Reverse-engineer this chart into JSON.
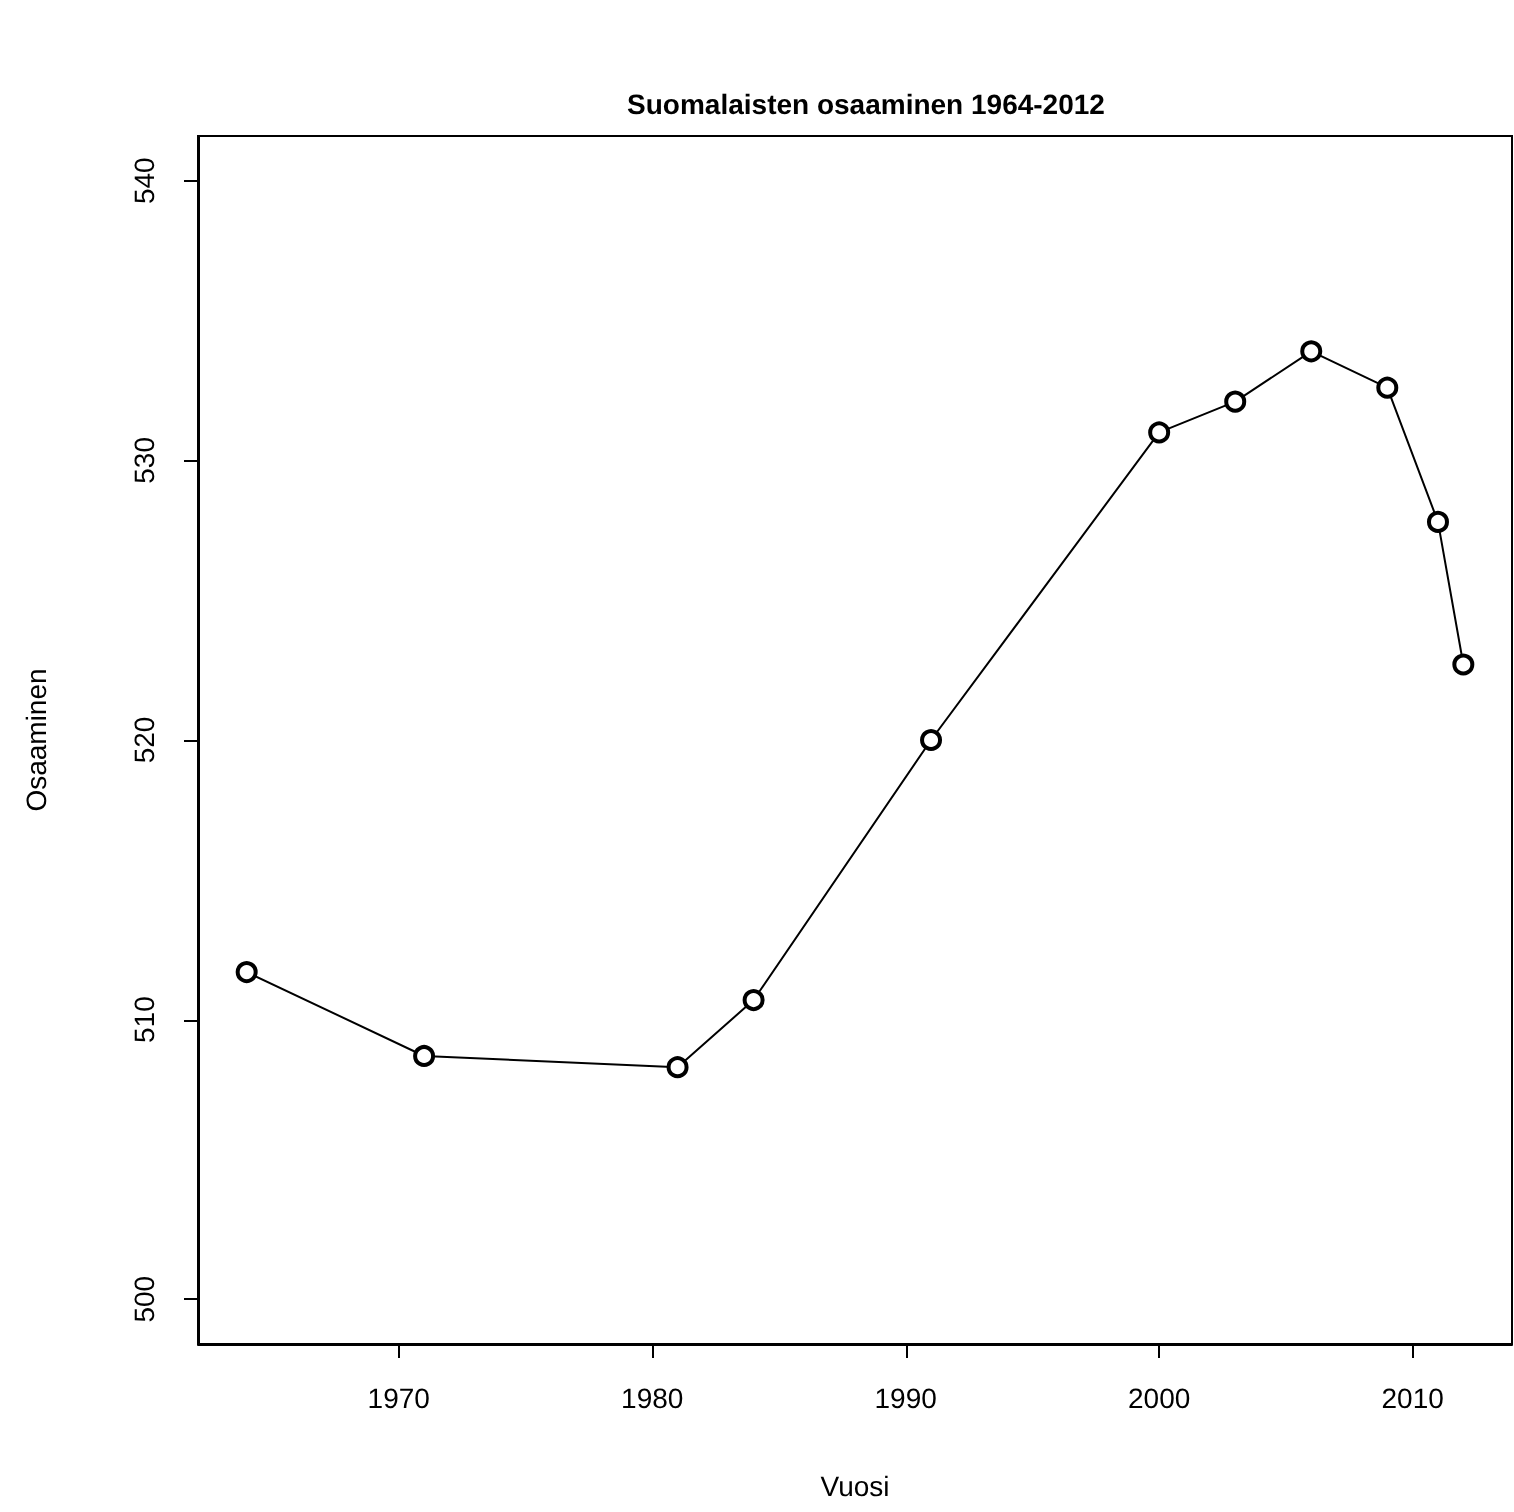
{
  "chart_data": {
    "type": "line",
    "title": "Suomalaisten osaaminen 1964-2012",
    "xlabel": "Vuosi",
    "ylabel": "Osaaminen",
    "x": [
      1964,
      1971,
      1981,
      1984,
      1991,
      2000,
      2003,
      2006,
      2009,
      2011,
      2012
    ],
    "series": [
      {
        "color": "#000000",
        "values": [
          511.7,
          508.7,
          508.3,
          510.7,
          520.0,
          531.0,
          532.1,
          533.9,
          532.6,
          527.8,
          522.7
        ]
      }
    ],
    "xlim": [
      1962.08,
      2013.92
    ],
    "xticks": [
      1970,
      1980,
      1990,
      2000,
      2010
    ],
    "ylim": [
      498.4,
      541.6
    ],
    "yticks": [
      500,
      510,
      520,
      530,
      540
    ],
    "grid": false,
    "marker": "circle",
    "line_style": "solid"
  }
}
